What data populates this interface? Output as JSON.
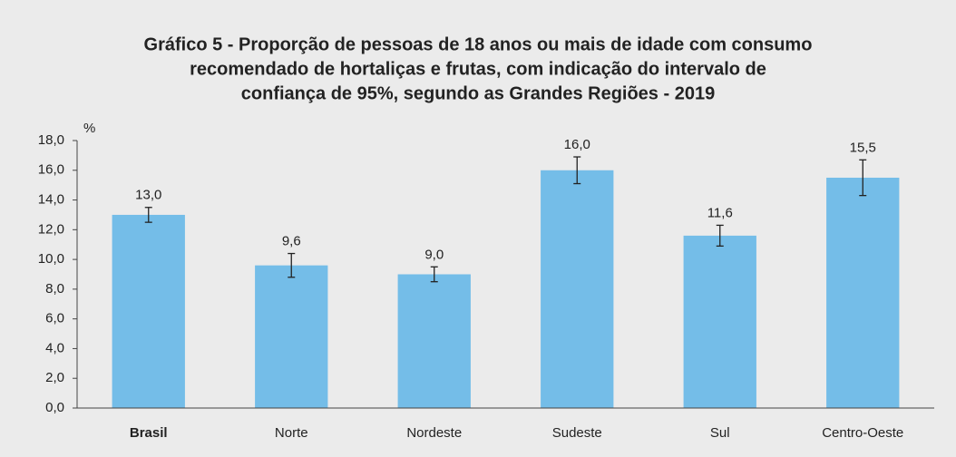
{
  "chart_data": {
    "type": "bar",
    "title": [
      "Gráfico 5 - Proporção de pessoas de 18 anos ou mais de idade com consumo",
      "recomendado de hortaliças e frutas, com indicação do intervalo de",
      "confiança de 95%, segundo as Grandes Regiões - 2019"
    ],
    "y_label": "%",
    "categories": [
      "Brasil",
      "Norte",
      "Nordeste",
      "Sudeste",
      "Sul",
      "Centro-Oeste"
    ],
    "values": [
      13.0,
      9.6,
      9.0,
      16.0,
      11.6,
      15.5
    ],
    "value_labels": [
      "13,0",
      "9,6",
      "9,0",
      "16,0",
      "11,6",
      "15,5"
    ],
    "errors": [
      0.5,
      0.8,
      0.5,
      0.9,
      0.7,
      1.2
    ],
    "color": "#74bde8",
    "ylim": [
      0,
      18
    ],
    "yticks": [
      {
        "value": 0,
        "label": "0,0"
      },
      {
        "value": 2,
        "label": "2,0"
      },
      {
        "value": 4,
        "label": "4,0"
      },
      {
        "value": 6,
        "label": "6,0"
      },
      {
        "value": 8,
        "label": "8,0"
      },
      {
        "value": 10,
        "label": "10,0"
      },
      {
        "value": 12,
        "label": "12,0"
      },
      {
        "value": 14,
        "label": "14,0"
      },
      {
        "value": 16,
        "label": "16,0"
      },
      {
        "value": 18,
        "label": "18,0"
      }
    ],
    "grid": false
  }
}
